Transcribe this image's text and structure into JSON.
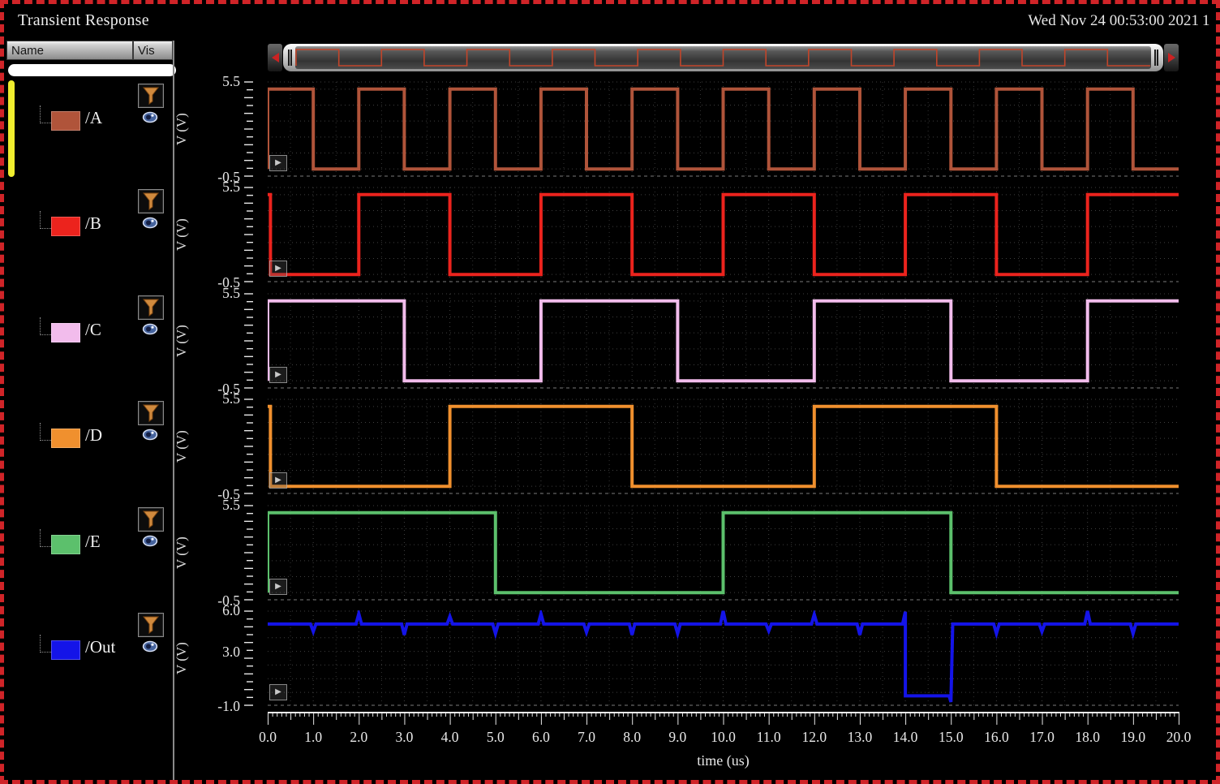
{
  "header": {
    "title": "Transient Response",
    "timestamp": "Wed Nov 24 00:53:00 2021",
    "timestamp_clipped": "1"
  },
  "panel": {
    "columns": [
      "Name",
      "Vis"
    ],
    "filter_value": "",
    "selected_signal": "/A",
    "row_icons": [
      "funnel-filter-icon",
      "eye-visibility-icon"
    ]
  },
  "scrollbar": {
    "minimap_signal": "/A",
    "wave_color": "#c2452a",
    "arrow_color": "#cc2222"
  },
  "axes": {
    "x_label": "time (us)",
    "x_min": 0,
    "x_max": 20,
    "x_tick_labels": [
      "0.0",
      "1.0",
      "2.0",
      "3.0",
      "4.0",
      "5.0",
      "6.0",
      "7.0",
      "8.0",
      "9.0",
      "10.0",
      "11.0",
      "12.0",
      "13.0",
      "14.0",
      "15.0",
      "16.0",
      "17.0",
      "18.0",
      "19.0",
      "20.0"
    ]
  },
  "chart_data": {
    "type": "line",
    "title": "Transient Response",
    "xlabel": "time (us)",
    "xlim": [
      0,
      20
    ],
    "grid": true,
    "legend_position": "left-panel",
    "strips": [
      {
        "name": "/A",
        "color": "#b0543a",
        "ylabel": "V (V)",
        "ylim": [
          -0.5,
          5.5
        ],
        "y_ticks": [
          {
            "label": "5.5",
            "v": 5.5
          },
          {
            "label": "-0.5",
            "v": -0.5
          }
        ],
        "wave": {
          "kind": "square",
          "high_level": 5,
          "low_level": 0,
          "initial_spike": false,
          "high_intervals": [
            [
              0,
              1
            ],
            [
              2,
              3
            ],
            [
              4,
              5
            ],
            [
              6,
              7
            ],
            [
              8,
              9
            ],
            [
              10,
              11
            ],
            [
              12,
              13
            ],
            [
              14,
              15
            ],
            [
              16,
              17
            ],
            [
              18,
              19
            ]
          ]
        }
      },
      {
        "name": "/B",
        "color": "#ec231d",
        "ylabel": "V (V)",
        "ylim": [
          -0.5,
          5.5
        ],
        "y_ticks": [
          {
            "label": "5.5",
            "v": 5.5
          },
          {
            "label": "-0.5",
            "v": -0.5
          }
        ],
        "wave": {
          "kind": "square",
          "high_level": 5,
          "low_level": 0,
          "initial_spike": true,
          "high_intervals": [
            [
              2,
              4
            ],
            [
              6,
              8
            ],
            [
              10,
              12
            ],
            [
              14,
              16
            ],
            [
              18,
              20
            ]
          ]
        }
      },
      {
        "name": "/C",
        "color": "#f2bcec",
        "ylabel": "V (V)",
        "ylim": [
          -0.5,
          5.5
        ],
        "y_ticks": [
          {
            "label": "5.5",
            "v": 5.5
          },
          {
            "label": "-0.5",
            "v": -0.5
          }
        ],
        "wave": {
          "kind": "square",
          "high_level": 5,
          "low_level": 0,
          "initial_spike": false,
          "high_intervals": [
            [
              0,
              3
            ],
            [
              6,
              9
            ],
            [
              12,
              15
            ],
            [
              18,
              20
            ]
          ]
        }
      },
      {
        "name": "/D",
        "color": "#f0902e",
        "ylabel": "V (V)",
        "ylim": [
          -0.5,
          5.5
        ],
        "y_ticks": [
          {
            "label": "5.5",
            "v": 5.5
          },
          {
            "label": "-0.5",
            "v": -0.5
          }
        ],
        "wave": {
          "kind": "square",
          "high_level": 5,
          "low_level": 0,
          "initial_spike": true,
          "high_intervals": [
            [
              4,
              8
            ],
            [
              12,
              16
            ]
          ]
        }
      },
      {
        "name": "/E",
        "color": "#5cc06c",
        "ylabel": "V (V)",
        "ylim": [
          -0.5,
          5.5
        ],
        "y_ticks": [
          {
            "label": "5.5",
            "v": 5.5
          },
          {
            "label": "-0.5",
            "v": -0.5
          }
        ],
        "wave": {
          "kind": "square",
          "high_level": 5,
          "low_level": 0,
          "initial_spike": false,
          "high_intervals": [
            [
              0,
              5
            ],
            [
              10,
              15
            ]
          ]
        }
      },
      {
        "name": "/Out",
        "color": "#1414e8",
        "ylabel": "V (V)",
        "ylim": [
          -1,
          6
        ],
        "y_ticks": [
          {
            "label": "6.0",
            "v": 6
          },
          {
            "label": "3.0",
            "v": 3
          },
          {
            "label": "-1.0",
            "v": -1
          }
        ],
        "wave": {
          "kind": "glitchy-high",
          "base_level": 5,
          "glitches": [
            {
              "t": 1,
              "v": 4.45
            },
            {
              "t": 2,
              "v": 5.75
            },
            {
              "t": 3,
              "v": 4.2
            },
            {
              "t": 4,
              "v": 5.55
            },
            {
              "t": 5,
              "v": 4.3
            },
            {
              "t": 6,
              "v": 5.75
            },
            {
              "t": 7,
              "v": 4.4
            },
            {
              "t": 8,
              "v": 4.2
            },
            {
              "t": 9,
              "v": 4.3
            },
            {
              "t": 10,
              "v": 5.95
            },
            {
              "t": 11,
              "v": 4.5
            },
            {
              "t": 12,
              "v": 5.7
            },
            {
              "t": 13,
              "v": 4.2
            },
            {
              "t": 16,
              "v": 4.3
            },
            {
              "t": 17,
              "v": 4.45
            },
            {
              "t": 18,
              "v": 5.95
            },
            {
              "t": 19,
              "v": 4.3
            }
          ],
          "fall_spike_v": 5.9,
          "low_pulse": {
            "start": 14,
            "end": 15,
            "level": -0.25,
            "undershoot": -0.7
          }
        }
      }
    ]
  }
}
